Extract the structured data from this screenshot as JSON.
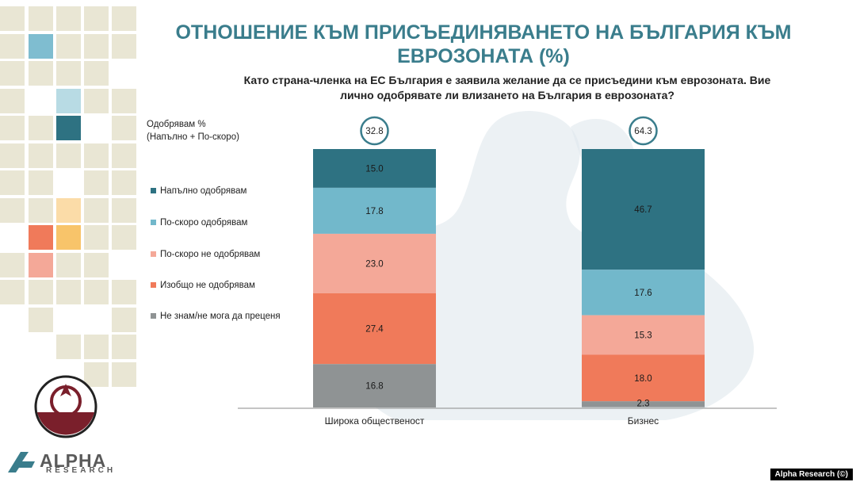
{
  "title_line1": "ОТНОШЕНИЕ КЪМ ПРИСЪЕДИНЯВАНЕТО НА БЪЛГАРИЯ КЪМ",
  "title_line2": "ЕВРОЗОНАТА (%)",
  "subtitle_line1": "Като страна-членка на ЕС България е заявила желание да се присъедини към еврозоната. Вие",
  "subtitle_line2": "лично одобрявате ли влизането на България в еврозоната?",
  "legend": {
    "approve_title_line1": "Одобрявам %",
    "approve_title_line2": "(Напълно + По-скоро)"
  },
  "logo": {
    "name": "ALPHA",
    "sub": "RESEARCH"
  },
  "credit": "Alpha Research (©)",
  "chart_data": {
    "type": "stacked-bar",
    "categories": [
      "Широка общественост",
      "Бизнес"
    ],
    "series": [
      {
        "name": "Напълно одобрявам",
        "color": "#2e7282",
        "values": [
          15.0,
          46.7
        ]
      },
      {
        "name": "По-скоро одобрявам",
        "color": "#72b8cb",
        "values": [
          17.8,
          17.6
        ]
      },
      {
        "name": "По-скоро не одобрявам",
        "color": "#f4a898",
        "values": [
          23.0,
          15.3
        ]
      },
      {
        "name": "Изобщо не одобрявам",
        "color": "#f07a5a",
        "values": [
          27.4,
          18.0
        ]
      },
      {
        "name": "Не знам/не мога да преценя",
        "color": "#8f9394",
        "values": [
          16.8,
          2.3
        ]
      }
    ],
    "approve_totals": [
      "32.8",
      "64.3"
    ],
    "value_labels": [
      [
        "15.0",
        "17.8",
        "23.0",
        "27.4",
        "16.8"
      ],
      [
        "46.7",
        "17.6",
        "15.3",
        "18.0",
        "2.3"
      ]
    ],
    "ylim": [
      0,
      100
    ]
  }
}
